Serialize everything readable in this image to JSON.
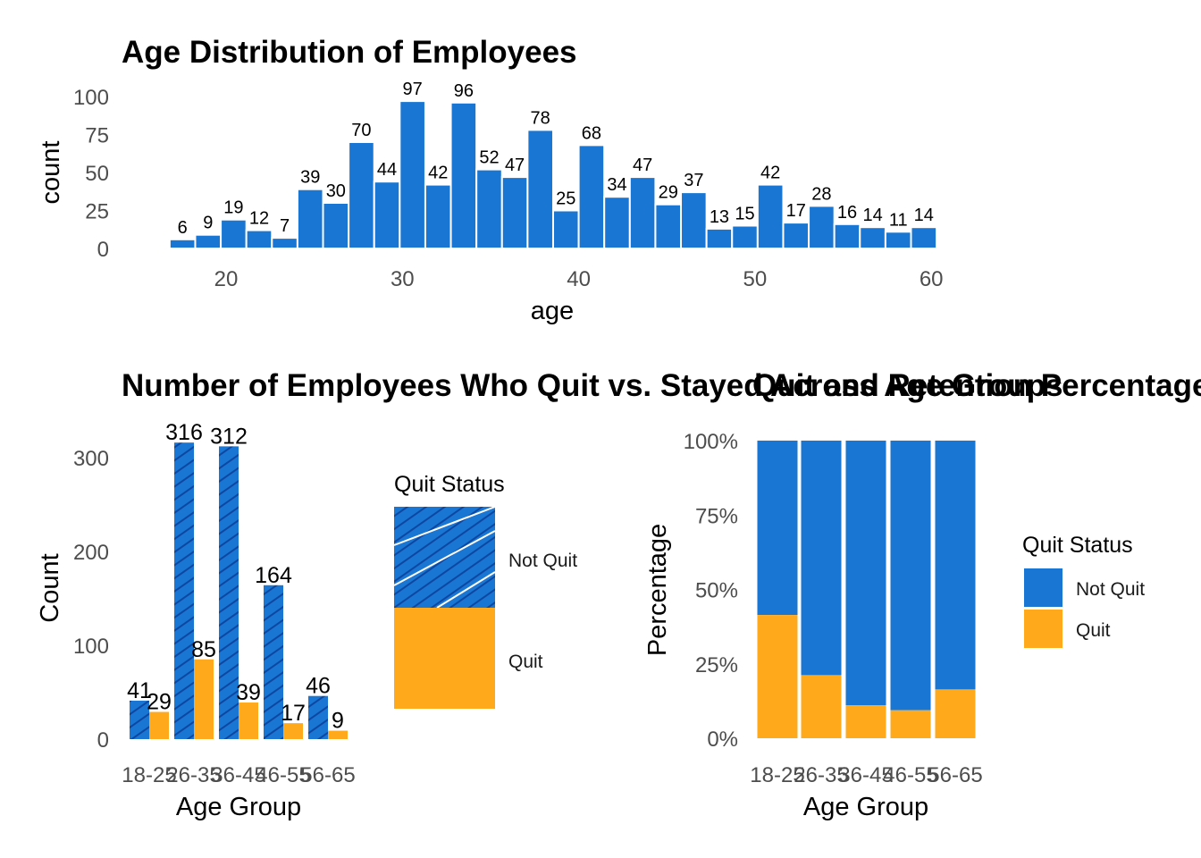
{
  "colors": {
    "not_quit": "#1976D2",
    "quit": "#FFA91B",
    "hatch": "#0d47a1"
  },
  "chart_data": [
    {
      "type": "bar",
      "title": "Age Distribution of Employees",
      "xlabel": "age",
      "ylabel": "count",
      "xlim": [
        16.3,
        60.7
      ],
      "ylim": [
        0,
        100
      ],
      "x_ticks": [
        20,
        30,
        40,
        50,
        60
      ],
      "y_ticks": [
        0,
        25,
        50,
        75,
        100
      ],
      "bin_width": 1.45,
      "bin_start": 16.8,
      "values": [
        6,
        9,
        19,
        12,
        7,
        39,
        30,
        70,
        44,
        97,
        42,
        96,
        52,
        47,
        78,
        25,
        68,
        34,
        47,
        29,
        37,
        13,
        15,
        42,
        17,
        28,
        16,
        14,
        11,
        14
      ],
      "value_labels": [
        "6",
        "9",
        "19",
        "12",
        "7",
        "39",
        "30",
        "70",
        "44",
        "97",
        "42",
        "96",
        "52",
        "47",
        "78",
        "25",
        "68",
        "34",
        "47",
        "29",
        "37",
        "13",
        "15",
        "42",
        "17",
        "28",
        "16",
        "14",
        "11",
        "14"
      ],
      "grid": false
    },
    {
      "type": "bar",
      "title": "Number of Employees Who Quit vs. Stayed Across Age Groups",
      "xlabel": "Age Group",
      "ylabel": "Count",
      "categories": [
        "18-25",
        "26-35",
        "36-45",
        "46-55",
        "56-65"
      ],
      "ylim": [
        0,
        330
      ],
      "y_ticks": [
        0,
        100,
        200,
        300
      ],
      "series": [
        {
          "name": "Not Quit",
          "values": [
            41,
            316,
            312,
            164,
            46
          ],
          "pattern": "stripe"
        },
        {
          "name": "Quit",
          "values": [
            29,
            85,
            39,
            17,
            9
          ]
        }
      ],
      "legend": {
        "title": "Quit Status",
        "position": "right"
      },
      "grid": false
    },
    {
      "type": "bar",
      "stacked": true,
      "title": "Quit and Retention Percentage",
      "xlabel": "Age Group",
      "ylabel": "Percentage",
      "categories": [
        "18-25",
        "26-35",
        "36-45",
        "46-55",
        "56-65"
      ],
      "ylim": [
        0,
        1
      ],
      "y_ticks": [
        "0%",
        "25%",
        "50%",
        "75%",
        "100%"
      ],
      "series": [
        {
          "name": "Not Quit",
          "values": [
            0.586,
            0.788,
            0.889,
            0.906,
            0.836
          ]
        },
        {
          "name": "Quit",
          "values": [
            0.414,
            0.212,
            0.111,
            0.094,
            0.164
          ]
        }
      ],
      "legend": {
        "title": "Quit Status",
        "position": "right"
      },
      "grid": false
    }
  ]
}
